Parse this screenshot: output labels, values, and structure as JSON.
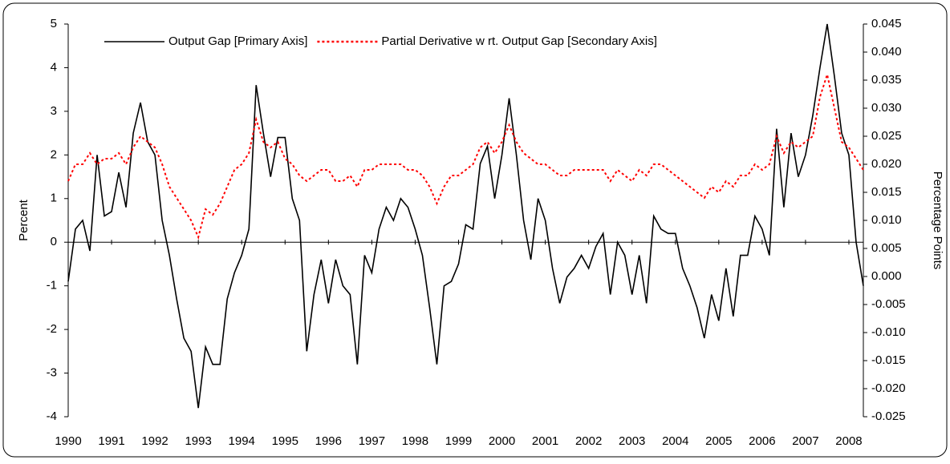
{
  "chart_data": {
    "type": "line",
    "y_label": "Percent",
    "y2_label": "Percentage Points",
    "categories": [
      "1990",
      null,
      null,
      null,
      null,
      null,
      "1991",
      null,
      null,
      null,
      null,
      null,
      "1992",
      null,
      null,
      null,
      null,
      null,
      "1993",
      null,
      null,
      null,
      null,
      null,
      "1994",
      null,
      null,
      null,
      null,
      null,
      "1995",
      null,
      null,
      null,
      null,
      null,
      "1996",
      null,
      null,
      null,
      null,
      null,
      "1997",
      null,
      null,
      null,
      null,
      null,
      "1998",
      null,
      null,
      null,
      null,
      null,
      "1999",
      null,
      null,
      null,
      null,
      null,
      "2000",
      null,
      null,
      null,
      null,
      null,
      "2001",
      null,
      null,
      null,
      null,
      null,
      "2002",
      null,
      null,
      null,
      null,
      null,
      "2003",
      null,
      null,
      null,
      null,
      null,
      "2004",
      null,
      null,
      null,
      null,
      null,
      "2005",
      null,
      null,
      null,
      null,
      null,
      "2006",
      null,
      null,
      null,
      null,
      null,
      "2007",
      null,
      null,
      null,
      null,
      null,
      "2008",
      null,
      null
    ],
    "series": [
      {
        "name": "Output Gap [Primary Axis]",
        "color": "#000000",
        "dash": "solid",
        "values": [
          -0.9,
          0.3,
          0.5,
          -0.2,
          2.0,
          0.6,
          0.7,
          1.6,
          0.8,
          2.5,
          3.2,
          2.3,
          2.0,
          0.5,
          -0.3,
          -1.3,
          -2.2,
          -2.5,
          -3.8,
          -2.4,
          -2.8,
          -2.8,
          -1.3,
          -0.7,
          -0.3,
          0.3,
          3.6,
          2.5,
          1.5,
          2.4,
          2.4,
          1.0,
          0.5,
          -2.5,
          -1.2,
          -0.4,
          -1.4,
          -0.4,
          -1.0,
          -1.2,
          -2.8,
          -0.3,
          -0.7,
          0.3,
          0.8,
          0.5,
          1.0,
          0.8,
          0.3,
          -0.3,
          -1.5,
          -2.8,
          -1.0,
          -0.9,
          -0.5,
          0.4,
          0.3,
          1.8,
          2.2,
          1.0,
          2.0,
          3.3,
          2.0,
          0.5,
          -0.4,
          1.0,
          0.5,
          -0.6,
          -1.4,
          -0.8,
          -0.6,
          -0.3,
          -0.6,
          -0.1,
          0.2,
          -1.2,
          0.0,
          -0.3,
          -1.2,
          -0.3,
          -1.4,
          0.6,
          0.3,
          0.2,
          0.2,
          -0.6,
          -1.0,
          -1.5,
          -2.2,
          -1.2,
          -1.8,
          -0.6,
          -1.7,
          -0.3,
          -0.3,
          0.6,
          0.3,
          -0.3,
          2.6,
          0.8,
          2.5,
          1.5,
          2.0,
          2.9,
          4.0,
          5.0,
          3.8,
          2.5,
          2.0,
          0.0,
          -1.0
        ]
      },
      {
        "name": "Partial Derivative w rt. Output Gap [Secondary Axis]",
        "color": "#ff0000",
        "dash": "dotted",
        "axis": "y2",
        "values": [
          0.017,
          0.02,
          0.02,
          0.022,
          0.02,
          0.021,
          0.021,
          0.022,
          0.02,
          0.023,
          0.025,
          0.024,
          0.023,
          0.02,
          0.016,
          0.014,
          0.012,
          0.01,
          0.007,
          0.012,
          0.011,
          0.013,
          0.016,
          0.019,
          0.02,
          0.022,
          0.028,
          0.024,
          0.023,
          0.024,
          0.021,
          0.02,
          0.018,
          0.017,
          0.018,
          0.019,
          0.019,
          0.017,
          0.017,
          0.018,
          0.016,
          0.019,
          0.019,
          0.02,
          0.02,
          0.02,
          0.02,
          0.019,
          0.019,
          0.018,
          0.016,
          0.013,
          0.016,
          0.018,
          0.018,
          0.019,
          0.02,
          0.023,
          0.024,
          0.022,
          0.024,
          0.027,
          0.024,
          0.022,
          0.021,
          0.02,
          0.02,
          0.019,
          0.018,
          0.018,
          0.019,
          0.019,
          0.019,
          0.019,
          0.019,
          0.017,
          0.019,
          0.018,
          0.017,
          0.019,
          0.018,
          0.02,
          0.02,
          0.019,
          0.018,
          0.017,
          0.016,
          0.015,
          0.014,
          0.016,
          0.015,
          0.017,
          0.016,
          0.018,
          0.018,
          0.02,
          0.019,
          0.02,
          0.025,
          0.022,
          0.024,
          0.023,
          0.024,
          0.025,
          0.032,
          0.036,
          0.03,
          0.024,
          0.023,
          0.021,
          0.019
        ]
      }
    ],
    "ylim": [
      -4,
      5
    ],
    "yticks": [
      -4,
      -3,
      -2,
      -1,
      0,
      1,
      2,
      3,
      4,
      5
    ],
    "y2lim": [
      -0.025,
      0.045
    ],
    "y2ticks": [
      -0.025,
      {
        "value": -0.02,
        "label": "-0.020"
      },
      -0.015,
      {
        "value": -0.01,
        "label": "-0.010"
      },
      -0.005,
      {
        "value": 0,
        "label": "0.000"
      },
      0.005,
      {
        "value": 0.01,
        "label": "0.010"
      },
      0.015,
      {
        "value": 0.02,
        "label": "0.020"
      },
      0.025,
      {
        "value": 0.03,
        "label": "0.030"
      },
      0.035,
      {
        "value": 0.04,
        "label": "0.040"
      },
      0.045
    ],
    "grid": false,
    "legend": "top"
  }
}
